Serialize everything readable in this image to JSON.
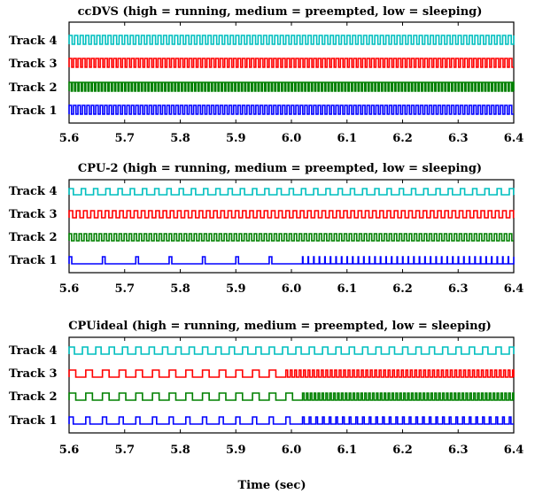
{
  "chart_data": {
    "type": "line",
    "xlabel": "Time (sec)",
    "xlim": [
      5.6,
      6.4
    ],
    "x_ticks": [
      "5.6",
      "5.7",
      "5.8",
      "5.9",
      "6.0",
      "6.1",
      "6.2",
      "6.3",
      "6.4"
    ],
    "state_levels": {
      "low": "sleeping",
      "medium": "preempted",
      "high": "running"
    },
    "colors": {
      "Track 1": "#0000ff",
      "Track 2": "#008000",
      "Track 3": "#ff0000",
      "Track 4": "#00bfbf"
    },
    "panels": [
      {
        "title": "ccDVS (high = running, medium = preempted, low = sleeping)",
        "labels": [
          "Track 4",
          "Track 3",
          "Track 2",
          "Track 1"
        ],
        "series": [
          {
            "name": "Track 4",
            "period": 0.01,
            "duty": 0.55,
            "start": 5.6,
            "amplitude": 1.0
          },
          {
            "name": "Track 3",
            "period": 0.008,
            "duty": 0.6,
            "start": 5.6,
            "amplitude": 1.0
          },
          {
            "name": "Track 2",
            "period": 0.006,
            "duty": 0.65,
            "start": 5.6,
            "amplitude": 1.0
          },
          {
            "name": "Track 1",
            "period": 0.008,
            "duty": 0.55,
            "start": 5.6,
            "amplitude": 1.0
          }
        ]
      },
      {
        "title": "CPU-2 (high = running, medium = preempted, low = sleeping)",
        "labels": [
          "Track 4",
          "Track 3",
          "Track 2",
          "Track 1"
        ],
        "series": [
          {
            "name": "Track 4",
            "period": 0.022,
            "duty": 0.35,
            "start": 5.6,
            "amplitude": 0.7
          },
          {
            "name": "Track 3",
            "period": 0.013,
            "duty": 0.5,
            "start": 5.6,
            "amplitude": 0.8
          },
          {
            "name": "Track 2",
            "period": 0.009,
            "duty": 0.5,
            "start": 5.6,
            "amplitude": 0.8
          },
          {
            "name": "Track 1",
            "period": 0.06,
            "duty": 0.08,
            "start": 5.6,
            "amplitude": 0.8,
            "dense_from": 6.01,
            "dense_period": 0.01
          }
        ]
      },
      {
        "title": "CPUideal (high = running, medium = preempted, low = sleeping)",
        "labels": [
          "Track 4",
          "Track 3",
          "Track 2",
          "Track 1"
        ],
        "series": [
          {
            "name": "Track 4",
            "period": 0.024,
            "duty": 0.4,
            "start": 5.6,
            "amplitude": 0.8
          },
          {
            "name": "Track 3",
            "period": 0.03,
            "duty": 0.4,
            "start": 5.6,
            "amplitude": 0.8,
            "dense_from": 5.99,
            "dense_period": 0.008
          },
          {
            "name": "Track 2",
            "period": 0.03,
            "duty": 0.4,
            "start": 5.6,
            "amplitude": 0.8,
            "dense_from": 6.0,
            "dense_period": 0.007
          },
          {
            "name": "Track 1",
            "period": 0.03,
            "duty": 0.25,
            "start": 5.6,
            "amplitude": 0.8,
            "dense_from": 6.02,
            "dense_period": 0.012
          }
        ]
      }
    ]
  }
}
